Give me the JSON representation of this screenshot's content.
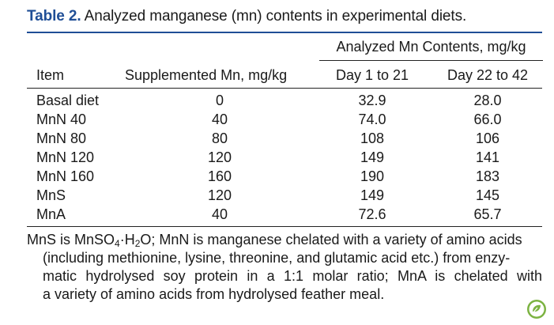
{
  "caption": {
    "label": "Table 2.",
    "text": " Analyzed manganese (mn) contents in experimental diets."
  },
  "table": {
    "group_header": "Analyzed Mn Contents, mg/kg",
    "columns": [
      "Item",
      "Supplemented Mn, mg/kg",
      "Day 1 to 21",
      "Day 22 to 42"
    ],
    "rows": [
      {
        "item": "Basal diet",
        "supplemented": "0",
        "day1_21": "32.9",
        "day22_42": "28.0"
      },
      {
        "item": "MnN 40",
        "supplemented": "40",
        "day1_21": "74.0",
        "day22_42": "66.0"
      },
      {
        "item": "MnN 80",
        "supplemented": "80",
        "day1_21": "108",
        "day22_42": "106"
      },
      {
        "item": "MnN 120",
        "supplemented": "120",
        "day1_21": "149",
        "day22_42": "141"
      },
      {
        "item": "MnN 160",
        "supplemented": "160",
        "day1_21": "190",
        "day22_42": "183"
      },
      {
        "item": "MnS",
        "supplemented": "120",
        "day1_21": "149",
        "day22_42": "145"
      },
      {
        "item": "MnA",
        "supplemented": "40",
        "day1_21": "72.6",
        "day22_42": "65.7"
      }
    ]
  },
  "footnote": {
    "part1": "MnS is MnSO",
    "sub1": "4",
    "part2": "·H",
    "sub2": "2",
    "part3": "O; MnN is manganese chelated with a variety of amino acids",
    "line2": "(including methionine, lysine, threonine, and glutamic acid etc.) from enzy-",
    "line3": "matic hydrolysed soy protein in a 1:1 molar ratio; MnA is chelated with",
    "line4": "a variety of amino acids from hydrolysed feather meal."
  },
  "colors": {
    "accent": "#1f4e96",
    "text": "#1a1a1a",
    "badge": "#7cb342"
  },
  "icons": {
    "badge": "open-access-leaf-icon"
  }
}
